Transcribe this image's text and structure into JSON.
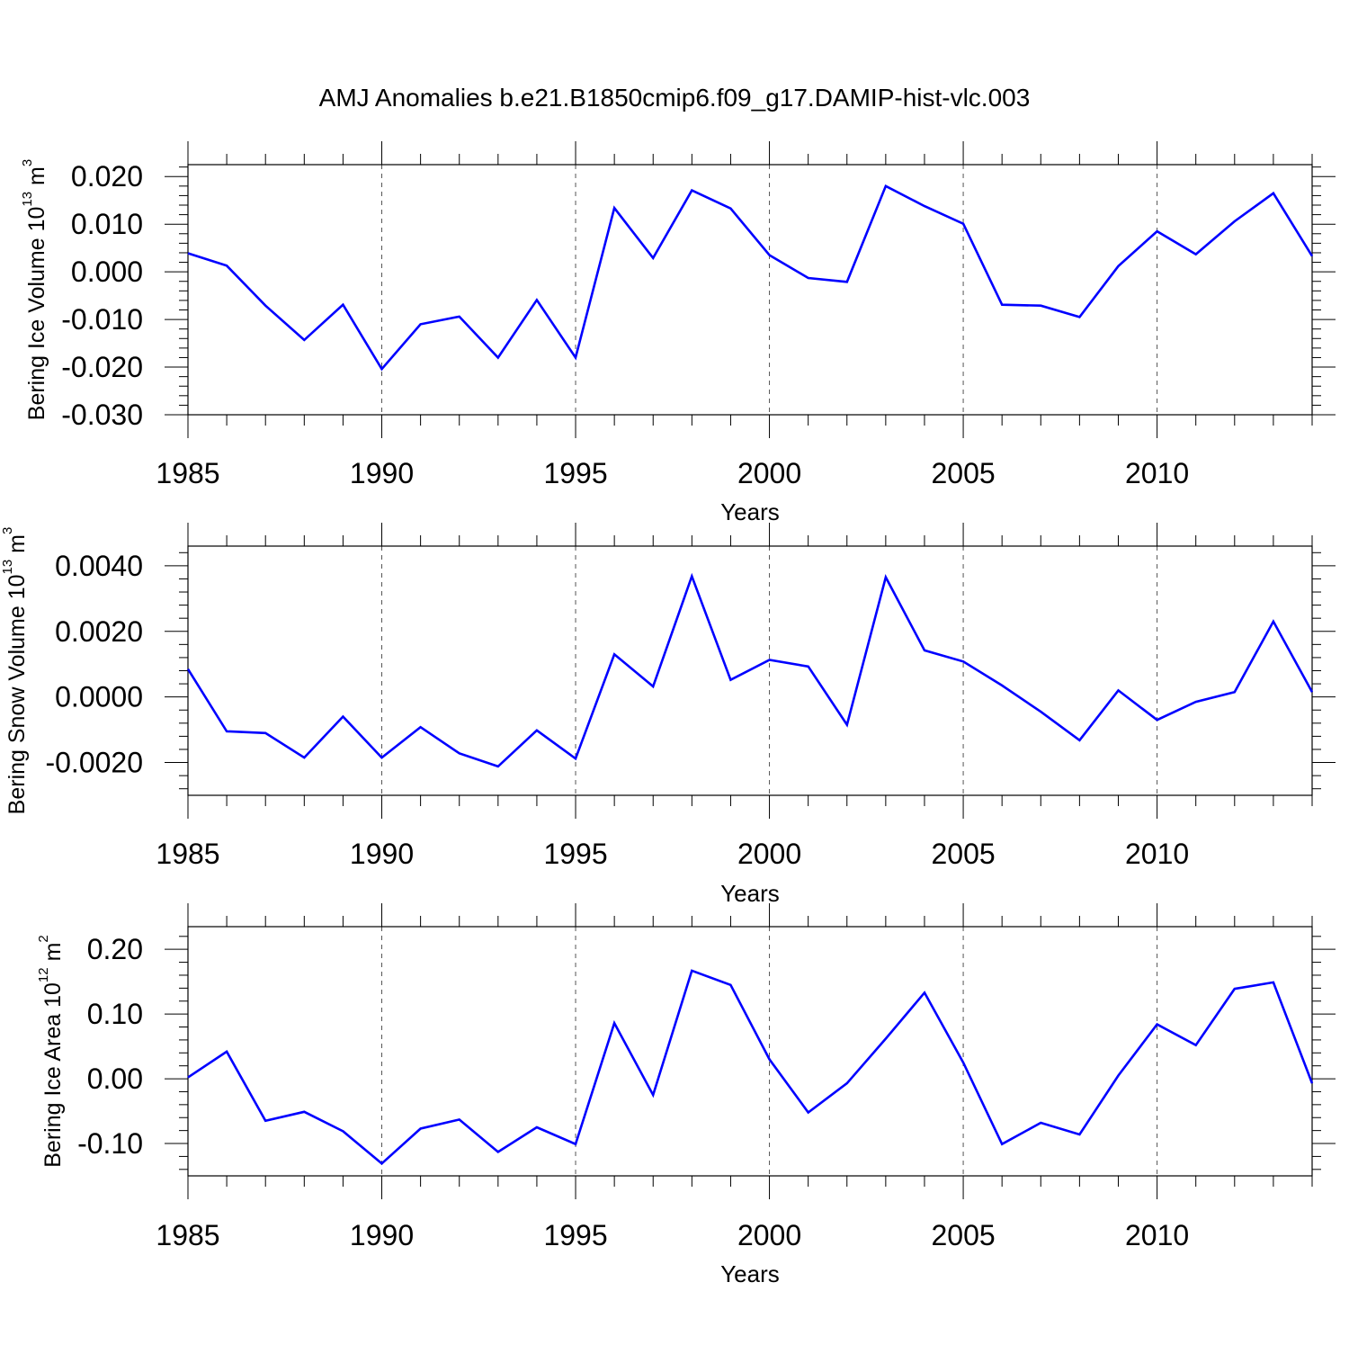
{
  "title": "AMJ Anomalies b.e21.B1850cmip6.f09_g17.DAMIP-hist-vlc.003",
  "chart_data": [
    {
      "type": "line",
      "name": "ice-volume",
      "ylabel": {
        "text": "Bering Ice Volume 10",
        "sup": "13",
        "unit": " m",
        "unit_sup": "3"
      },
      "xlabel": "Years",
      "xlim": [
        1985,
        2014
      ],
      "ylim": [
        -0.03,
        0.0225
      ],
      "yticks": [
        -0.03,
        -0.02,
        -0.01,
        0.0,
        0.01,
        0.02
      ],
      "ytick_labels": [
        "-0.030",
        "-0.020",
        "-0.010",
        "0.000",
        "0.010",
        "0.020"
      ],
      "yminor_step": 0.002,
      "xticks": [
        1985,
        1990,
        1995,
        2000,
        2005,
        2010
      ],
      "xtick_labels": [
        "1985",
        "1990",
        "1995",
        "2000",
        "2005",
        "2010"
      ],
      "grid": "dashed-vertical",
      "line_color": "#0000ff",
      "x": [
        1985,
        1986,
        1987,
        1988,
        1989,
        1990,
        1991,
        1992,
        1993,
        1994,
        1995,
        1996,
        1997,
        1998,
        1999,
        2000,
        2001,
        2002,
        2003,
        2004,
        2005,
        2006,
        2007,
        2008,
        2009,
        2010,
        2011,
        2012,
        2013,
        2014
      ],
      "values": [
        0.0039,
        0.0013,
        -0.0071,
        -0.0143,
        -0.0069,
        -0.0204,
        -0.011,
        -0.0094,
        -0.018,
        -0.0059,
        -0.018,
        0.0134,
        0.0029,
        0.0171,
        0.0133,
        0.0035,
        -0.0013,
        -0.0021,
        0.018,
        0.0138,
        0.0101,
        -0.0069,
        -0.0071,
        -0.0095,
        0.0012,
        0.0085,
        0.0037,
        0.0106,
        0.0165,
        0.0033
      ]
    },
    {
      "type": "line",
      "name": "snow-volume",
      "ylabel": {
        "text": "Bering Snow Volume 10",
        "sup": "13",
        "unit": " m",
        "unit_sup": "3"
      },
      "xlabel": "Years",
      "xlim": [
        1985,
        2014
      ],
      "ylim": [
        -0.003,
        0.0046
      ],
      "yticks": [
        -0.002,
        0.0,
        0.002,
        0.004
      ],
      "ytick_labels": [
        "-0.0020",
        "0.0000",
        "0.0020",
        "0.0040"
      ],
      "yminor_step": 0.0004,
      "xticks": [
        1985,
        1990,
        1995,
        2000,
        2005,
        2010
      ],
      "xtick_labels": [
        "1985",
        "1990",
        "1995",
        "2000",
        "2005",
        "2010"
      ],
      "grid": "dashed-vertical",
      "line_color": "#0000ff",
      "x": [
        1985,
        1986,
        1987,
        1988,
        1989,
        1990,
        1991,
        1992,
        1993,
        1994,
        1995,
        1996,
        1997,
        1998,
        1999,
        2000,
        2001,
        2002,
        2003,
        2004,
        2005,
        2006,
        2007,
        2008,
        2009,
        2010,
        2011,
        2012,
        2013,
        2014
      ],
      "values": [
        0.00085,
        -0.00105,
        -0.0011,
        -0.00185,
        -0.0006,
        -0.00185,
        -0.00092,
        -0.00172,
        -0.00212,
        -0.00102,
        -0.00188,
        0.0013,
        0.00032,
        0.00368,
        0.00052,
        0.00113,
        0.00093,
        -0.00085,
        0.00365,
        0.00142,
        0.00108,
        0.00035,
        -0.00045,
        -0.00132,
        0.0002,
        -0.0007,
        -0.00015,
        0.00015,
        0.0023,
        0.00015
      ]
    },
    {
      "type": "line",
      "name": "ice-area",
      "ylabel": {
        "text": "Bering Ice Area 10",
        "sup": "12",
        "unit": " m",
        "unit_sup": "2"
      },
      "xlabel": "Years",
      "xlim": [
        1985,
        2014
      ],
      "ylim": [
        -0.15,
        0.235
      ],
      "yticks": [
        -0.1,
        0.0,
        0.1,
        0.2
      ],
      "ytick_labels": [
        "-0.10",
        "0.00",
        "0.10",
        "0.20"
      ],
      "yminor_step": 0.02,
      "xticks": [
        1985,
        1990,
        1995,
        2000,
        2005,
        2010
      ],
      "xtick_labels": [
        "1985",
        "1990",
        "1995",
        "2000",
        "2005",
        "2010"
      ],
      "grid": "dashed-vertical",
      "line_color": "#0000ff",
      "x": [
        1985,
        1986,
        1987,
        1988,
        1989,
        1990,
        1991,
        1992,
        1993,
        1994,
        1995,
        1996,
        1997,
        1998,
        1999,
        2000,
        2001,
        2002,
        2003,
        2004,
        2005,
        2006,
        2007,
        2008,
        2009,
        2010,
        2011,
        2012,
        2013,
        2014
      ],
      "values": [
        0.002,
        0.042,
        -0.065,
        -0.051,
        -0.081,
        -0.131,
        -0.077,
        -0.063,
        -0.113,
        -0.075,
        -0.101,
        0.086,
        -0.025,
        0.167,
        0.145,
        0.03,
        -0.052,
        -0.007,
        0.062,
        0.133,
        0.025,
        -0.101,
        -0.068,
        -0.086,
        0.005,
        0.084,
        0.052,
        0.139,
        0.149,
        -0.007
      ]
    }
  ]
}
